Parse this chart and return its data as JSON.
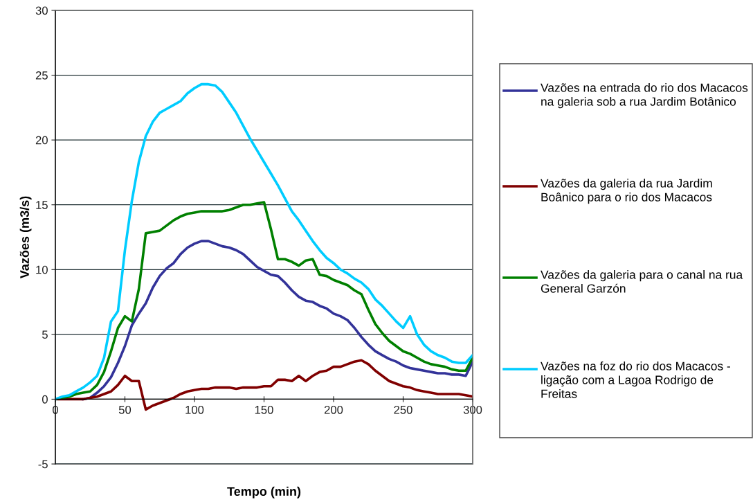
{
  "chart_data": {
    "type": "line",
    "xlabel": "Tempo (min)",
    "ylabel": "Vazões (m3/s)",
    "x": [
      0,
      5,
      10,
      15,
      20,
      25,
      30,
      35,
      40,
      45,
      50,
      55,
      60,
      65,
      70,
      75,
      80,
      85,
      90,
      95,
      100,
      105,
      110,
      115,
      120,
      125,
      130,
      135,
      140,
      145,
      150,
      155,
      160,
      165,
      170,
      175,
      180,
      185,
      190,
      195,
      200,
      205,
      210,
      215,
      220,
      225,
      230,
      235,
      240,
      245,
      250,
      255,
      260,
      265,
      270,
      275,
      280,
      285,
      290,
      295,
      300
    ],
    "series": [
      {
        "name": "Vazões na entrada do rio dos Macacos na galeria sob a rua Jardim Botânico",
        "color": "#333399",
        "values": [
          null,
          null,
          null,
          null,
          0,
          0.1,
          0.5,
          1.0,
          1.7,
          2.8,
          4.1,
          5.7,
          6.6,
          7.4,
          8.6,
          9.5,
          10.1,
          10.5,
          11.2,
          11.7,
          12.0,
          12.2,
          12.2,
          12.0,
          11.8,
          11.7,
          11.5,
          11.2,
          10.7,
          10.2,
          9.9,
          9.6,
          9.5,
          9.0,
          8.4,
          7.9,
          7.6,
          7.5,
          7.2,
          7.0,
          6.6,
          6.4,
          6.1,
          5.5,
          4.8,
          4.2,
          3.7,
          3.4,
          3.1,
          2.9,
          2.6,
          2.4,
          2.3,
          2.2,
          2.1,
          2.0,
          2.0,
          1.9,
          1.9,
          1.8,
          2.9
        ]
      },
      {
        "name": "Vazões da galeria da rua Jardim Boânico para o rio dos Macacos",
        "color": "#800000",
        "values": [
          0,
          0,
          0,
          0,
          0,
          0.1,
          0.2,
          0.4,
          0.6,
          1.1,
          1.8,
          1.4,
          1.4,
          -0.8,
          -0.5,
          -0.3,
          -0.1,
          0.1,
          0.4,
          0.6,
          0.7,
          0.8,
          0.8,
          0.9,
          0.9,
          0.9,
          0.8,
          0.9,
          0.9,
          0.9,
          1.0,
          1.0,
          1.5,
          1.5,
          1.4,
          1.8,
          1.4,
          1.8,
          2.1,
          2.2,
          2.5,
          2.5,
          2.7,
          2.9,
          3.0,
          2.7,
          2.2,
          1.8,
          1.4,
          1.2,
          1.0,
          0.9,
          0.7,
          0.6,
          0.5,
          0.4,
          0.4,
          0.4,
          0.4,
          0.3,
          0.2
        ]
      },
      {
        "name": "Vazões da galeria para o canal na rua General Garzón",
        "color": "#008000",
        "values": [
          0,
          0.1,
          0.2,
          0.4,
          0.5,
          0.6,
          1.1,
          2.1,
          3.7,
          5.5,
          6.4,
          6.0,
          8.5,
          12.8,
          12.9,
          13.0,
          13.4,
          13.8,
          14.1,
          14.3,
          14.4,
          14.5,
          14.5,
          14.5,
          14.5,
          14.6,
          14.8,
          15.0,
          15.0,
          15.1,
          15.2,
          13.1,
          10.8,
          10.8,
          10.6,
          10.3,
          10.7,
          10.8,
          9.6,
          9.5,
          9.2,
          9.0,
          8.8,
          8.4,
          8.1,
          6.9,
          5.8,
          5.1,
          4.5,
          4.1,
          3.7,
          3.5,
          3.2,
          2.9,
          2.7,
          2.6,
          2.5,
          2.3,
          2.2,
          2.2,
          3.2
        ]
      },
      {
        "name": "Vazões na foz do rio dos Macacos - ligação com a Lagoa Rodrigo de Freitas",
        "color": "#00ccff",
        "values": [
          0,
          0.2,
          0.3,
          0.6,
          0.9,
          1.3,
          1.8,
          3.2,
          6.0,
          6.8,
          11.5,
          15.3,
          18.3,
          20.3,
          21.4,
          22.1,
          22.4,
          22.7,
          23.0,
          23.6,
          24.0,
          24.3,
          24.3,
          24.2,
          23.7,
          22.9,
          22.1,
          21.1,
          20.1,
          19.2,
          18.3,
          17.4,
          16.5,
          15.5,
          14.5,
          13.8,
          13.0,
          12.2,
          11.5,
          10.9,
          10.5,
          10.0,
          9.7,
          9.3,
          9.0,
          8.5,
          7.7,
          7.2,
          6.6,
          6.0,
          5.5,
          6.4,
          5.0,
          4.2,
          3.7,
          3.4,
          3.2,
          2.9,
          2.8,
          2.8,
          3.4
        ]
      }
    ],
    "xlim": [
      0,
      300
    ],
    "xticks": [
      0,
      50,
      100,
      150,
      200,
      250,
      300
    ],
    "ylim": [
      -5,
      30
    ],
    "yticks": [
      -5,
      0,
      5,
      10,
      15,
      20,
      25,
      30
    ],
    "grid": "y",
    "legend": "right",
    "marker": "none",
    "line_style": "solid"
  }
}
